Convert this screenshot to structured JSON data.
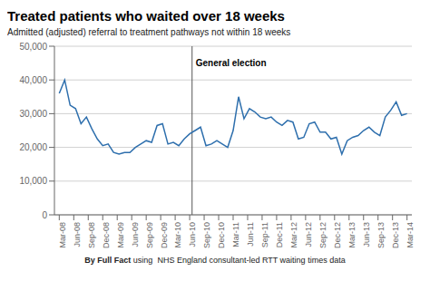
{
  "chart_data": {
    "type": "line",
    "title": "Treated patients who waited over 18 weeks",
    "subtitle": "Admitted (adjusted) referral to treatment pathways not within 18 weeks",
    "footer_bold": "By Full Fact",
    "footer": " using  NHS England consultant-led RTT waiting times data",
    "x": [
      0,
      1.125,
      2.25,
      3.375,
      4.5,
      5.625,
      6.75,
      7.875,
      9,
      10.125,
      11.25,
      12.375,
      13.5,
      14.625,
      15.75,
      16.875,
      18,
      19.125,
      20.25,
      21.375,
      22.5,
      23.625,
      24.75,
      25.875,
      27,
      28.125,
      29.25,
      30.375,
      31.5,
      32.625,
      33.75,
      34.875,
      36,
      37.125,
      38.25,
      39.375,
      40.5,
      41.625,
      42.75,
      43.875,
      45,
      46.125,
      47.25,
      48.375,
      49.5,
      50.625,
      51.75,
      52.875,
      54,
      55.125,
      56.25,
      57.375,
      58.5,
      59.625,
      60.75,
      61.875,
      63,
      64.125,
      65.25,
      66.375,
      67.5,
      68.625,
      69.75,
      70.875,
      72
    ],
    "values": [
      36000,
      40000,
      32500,
      31500,
      27000,
      29000,
      25500,
      22500,
      20500,
      21000,
      18500,
      18000,
      18500,
      18500,
      20000,
      21000,
      22000,
      21500,
      26500,
      27000,
      21000,
      21500,
      20500,
      22500,
      24000,
      25000,
      26000,
      20500,
      21000,
      22000,
      21000,
      20000,
      25000,
      35000,
      28500,
      31500,
      30500,
      29000,
      28500,
      29000,
      27500,
      26500,
      28000,
      27500,
      22500,
      23000,
      27000,
      27500,
      24500,
      24500,
      22500,
      23000,
      18000,
      22000,
      23000,
      23500,
      25000,
      26000,
      24500,
      23500,
      29000,
      31000,
      33500,
      29500,
      30000
    ],
    "color": "#2e6fad",
    "xlim": [
      -1,
      73
    ],
    "xticks": [
      {
        "value": 0,
        "label": "Mar-08"
      },
      {
        "value": 3,
        "label": "Jun-08"
      },
      {
        "value": 6,
        "label": "Sep-08"
      },
      {
        "value": 9,
        "label": "Dec-08"
      },
      {
        "value": 12,
        "label": "Mar-09"
      },
      {
        "value": 15,
        "label": "Jun-09"
      },
      {
        "value": 18,
        "label": "Sep-09"
      },
      {
        "value": 21,
        "label": "Dec-09"
      },
      {
        "value": 24,
        "label": "Mar-10"
      },
      {
        "value": 27,
        "label": "Jun-10"
      },
      {
        "value": 30,
        "label": "Sep-10"
      },
      {
        "value": 33,
        "label": "Dec-10"
      },
      {
        "value": 36,
        "label": "Mar-11"
      },
      {
        "value": 39,
        "label": "Jun-11"
      },
      {
        "value": 42,
        "label": "Sep-11"
      },
      {
        "value": 45,
        "label": "Dec-11"
      },
      {
        "value": 48,
        "label": "Mar-12"
      },
      {
        "value": 51,
        "label": "Jun-12"
      },
      {
        "value": 54,
        "label": "Sep-12"
      },
      {
        "value": 57,
        "label": "Dec-12"
      },
      {
        "value": 60,
        "label": "Mar-13"
      },
      {
        "value": 63,
        "label": "Jun-13"
      },
      {
        "value": 66,
        "label": "Sep-13"
      },
      {
        "value": 69,
        "label": "Dec-13"
      },
      {
        "value": 72,
        "label": "Mar-14"
      }
    ],
    "ylim": [
      0,
      50000
    ],
    "yticks": [
      0,
      {
        "value": 10000,
        "label": "10,000"
      },
      {
        "value": 20000,
        "label": "20,000"
      },
      {
        "value": 30000,
        "label": "30,000"
      },
      {
        "value": 40000,
        "label": "40,000"
      },
      {
        "value": 50000,
        "label": "50,000"
      }
    ],
    "grid": true,
    "annotations": [
      {
        "type": "vline",
        "x": 27.5,
        "label": "General election",
        "color": "#555555"
      }
    ]
  }
}
